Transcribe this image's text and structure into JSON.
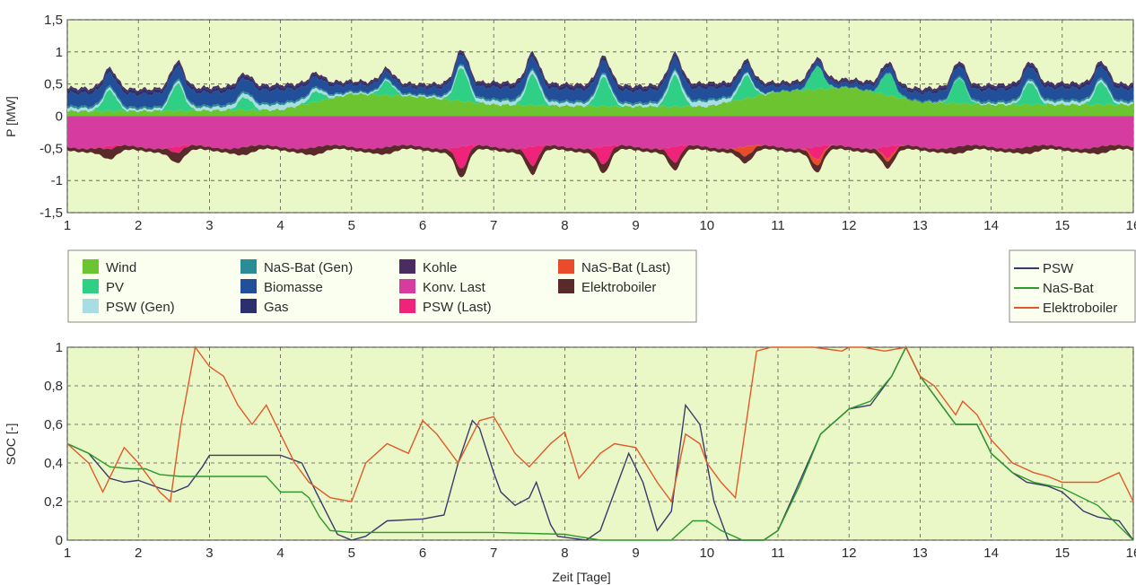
{
  "chart_data": [
    {
      "type": "area",
      "ylabel": "P [MW]",
      "xlim": [
        1,
        16
      ],
      "ylim": [
        -1.5,
        1.5
      ],
      "x_ticks": [
        "1",
        "2",
        "3",
        "4",
        "5",
        "6",
        "7",
        "8",
        "9",
        "10",
        "11",
        "12",
        "13",
        "14",
        "15",
        "16"
      ],
      "y_ticks": [
        "1,5",
        "1",
        "0,5",
        "0",
        "-0,5",
        "-1",
        "-1,5"
      ],
      "grid": true,
      "legend_position": "below",
      "series": [
        {
          "name": "Wind",
          "color": "#6cc530",
          "values": [
            0.08,
            0.08,
            0.09,
            0.1,
            0.35,
            0.3,
            0.18,
            0.16,
            0.15,
            0.15,
            0.38,
            0.45,
            0.22,
            0.18,
            0.18,
            0.18
          ]
        },
        {
          "name": "PV",
          "color": "#2fcf86",
          "values": [
            0.0,
            0.0,
            0.0,
            0.0,
            0.0,
            0.0,
            0.0,
            0.0,
            0.0,
            0.0,
            0.0,
            0.0,
            0.0,
            0.0,
            0.0,
            0.0
          ]
        },
        {
          "name": "PSW (Gen)",
          "color": "#a9dde3",
          "values": [
            0.05,
            0.03,
            0.05,
            0.08,
            0.02,
            0.02,
            0.06,
            0.05,
            0.03,
            0.08,
            0.0,
            0.0,
            0.0,
            0.02,
            0.05,
            0.03
          ]
        },
        {
          "name": "NaS-Bat (Gen)",
          "color": "#2a8c94",
          "values": [
            0.03,
            0.03,
            0.03,
            0.03,
            0.02,
            0.02,
            0.03,
            0.03,
            0.03,
            0.03,
            0.01,
            0.01,
            0.02,
            0.03,
            0.03,
            0.03
          ]
        },
        {
          "name": "Biomasse",
          "color": "#224f9a",
          "values": [
            0.2,
            0.2,
            0.2,
            0.2,
            0.1,
            0.1,
            0.18,
            0.18,
            0.18,
            0.18,
            0.08,
            0.06,
            0.12,
            0.18,
            0.18,
            0.18
          ]
        },
        {
          "name": "Gas",
          "color": "#2b2f6e",
          "values": [
            0.05,
            0.05,
            0.05,
            0.05,
            0.03,
            0.03,
            0.05,
            0.05,
            0.05,
            0.05,
            0.03,
            0.03,
            0.04,
            0.05,
            0.05,
            0.05
          ]
        },
        {
          "name": "Kohle",
          "color": "#4a2c63",
          "values": [
            0.03,
            0.03,
            0.03,
            0.03,
            0.03,
            0.03,
            0.03,
            0.03,
            0.03,
            0.03,
            0.03,
            0.03,
            0.03,
            0.03,
            0.03,
            0.03
          ]
        },
        {
          "name": "Konv. Last",
          "color": "#d63ca0",
          "values": [
            -0.48,
            -0.48,
            -0.48,
            -0.48,
            -0.48,
            -0.48,
            -0.48,
            -0.48,
            -0.48,
            -0.48,
            -0.48,
            -0.48,
            -0.48,
            -0.48,
            -0.48,
            -0.48
          ]
        },
        {
          "name": "PSW (Last)",
          "color": "#f0237a",
          "values": [
            0.0,
            0.0,
            0.0,
            0.0,
            0.0,
            0.0,
            0.0,
            0.0,
            0.0,
            0.0,
            0.0,
            0.0,
            0.0,
            0.0,
            0.0,
            0.0
          ]
        },
        {
          "name": "NaS-Bat (Last)",
          "color": "#ea4b2a",
          "values": [
            0.0,
            0.0,
            0.0,
            0.0,
            0.0,
            0.0,
            0.0,
            0.0,
            0.0,
            0.0,
            0.0,
            0.0,
            0.0,
            0.0,
            0.0,
            0.0
          ]
        },
        {
          "name": "Elektroboiler",
          "color": "#5a2a2a",
          "values": [
            -0.05,
            -0.05,
            -0.05,
            -0.05,
            -0.05,
            -0.05,
            -0.05,
            -0.05,
            -0.05,
            -0.05,
            -0.05,
            -0.05,
            -0.05,
            -0.05,
            -0.05,
            -0.05
          ]
        }
      ],
      "peaks": {
        "pv_peak_days": [
          1.6,
          2.55,
          3.5,
          4.5,
          5.5,
          6.55,
          7.55,
          8.55,
          9.55,
          10.55,
          11.55,
          12.55,
          13.55,
          14.55,
          15.55
        ],
        "pv_peak_values": [
          0.32,
          0.42,
          0.2,
          0.16,
          0.22,
          0.52,
          0.48,
          0.45,
          0.48,
          0.35,
          0.35,
          0.35,
          0.4,
          0.35,
          0.35
        ],
        "psw_last_peak_values": [
          -0.05,
          -0.1,
          0.0,
          0.0,
          0.0,
          -0.35,
          -0.3,
          -0.28,
          -0.25,
          0.0,
          -0.2,
          -0.18,
          0.0,
          0.0,
          0.0
        ],
        "nas_last_peak_values": [
          0.0,
          0.0,
          0.0,
          0.0,
          0.0,
          0.0,
          0.0,
          0.0,
          0.0,
          -0.15,
          -0.1,
          -0.05,
          0.0,
          0.0,
          0.0
        ],
        "boiler_peak_values": [
          -0.18,
          -0.18,
          -0.12,
          -0.12,
          -0.1,
          -0.15,
          -0.15,
          -0.15,
          -0.12,
          -0.1,
          -0.1,
          -0.1,
          -0.1,
          -0.1,
          -0.1
        ]
      }
    },
    {
      "type": "line",
      "xlabel": "Zeit [Tage]",
      "ylabel": "SOC [-]",
      "xlim": [
        1,
        16
      ],
      "ylim": [
        0,
        1
      ],
      "x_ticks": [
        "1",
        "2",
        "3",
        "4",
        "5",
        "6",
        "7",
        "8",
        "9",
        "10",
        "11",
        "12",
        "13",
        "14",
        "15",
        "16"
      ],
      "y_ticks": [
        "1",
        "0,8",
        "0,6",
        "0,4",
        "0,2",
        "0"
      ],
      "grid": true,
      "legend_position": "top-right",
      "series": [
        {
          "name": "PSW",
          "color": "#3a3a6e",
          "x": [
            1,
            1.3,
            1.6,
            1.8,
            2.0,
            2.3,
            2.5,
            2.7,
            2.9,
            3.0,
            3.5,
            3.8,
            4.0,
            4.3,
            4.5,
            4.8,
            5.0,
            5.2,
            5.5,
            6.0,
            6.3,
            6.5,
            6.7,
            6.8,
            7.0,
            7.1,
            7.3,
            7.5,
            7.6,
            7.8,
            7.9,
            8.3,
            8.5,
            8.7,
            8.9,
            9.1,
            9.3,
            9.5,
            9.7,
            9.9,
            10.1,
            10.3,
            10.5,
            10.8,
            11.0,
            11.3,
            11.6,
            12.0,
            12.3,
            12.6,
            12.8,
            13.0,
            13.5,
            13.8,
            14.0,
            14.3,
            14.5,
            14.8,
            15.0,
            15.3,
            15.5,
            15.8,
            16.0
          ],
          "y": [
            0.5,
            0.45,
            0.32,
            0.3,
            0.31,
            0.27,
            0.25,
            0.28,
            0.38,
            0.44,
            0.44,
            0.44,
            0.44,
            0.4,
            0.25,
            0.03,
            0.0,
            0.02,
            0.1,
            0.11,
            0.13,
            0.4,
            0.62,
            0.58,
            0.35,
            0.25,
            0.18,
            0.22,
            0.3,
            0.08,
            0.02,
            0.0,
            0.05,
            0.25,
            0.45,
            0.3,
            0.05,
            0.15,
            0.7,
            0.6,
            0.2,
            0.0,
            0.0,
            0.0,
            0.05,
            0.3,
            0.55,
            0.68,
            0.7,
            0.85,
            1.0,
            0.85,
            0.6,
            0.6,
            0.45,
            0.35,
            0.3,
            0.28,
            0.25,
            0.15,
            0.12,
            0.1,
            0.0
          ]
        },
        {
          "name": "NaS-Bat",
          "color": "#2a9a2a",
          "x": [
            1,
            1.3,
            1.6,
            1.9,
            2.1,
            2.3,
            2.6,
            3.0,
            3.5,
            3.8,
            4.0,
            4.3,
            4.4,
            4.55,
            4.7,
            5.0,
            6.0,
            7.0,
            8.0,
            8.5,
            9.5,
            9.8,
            10.0,
            10.2,
            10.5,
            10.8,
            11.0,
            11.3,
            11.6,
            12.0,
            12.3,
            12.6,
            12.8,
            13.0,
            13.5,
            13.8,
            14.0,
            14.3,
            14.6,
            15.0,
            15.5,
            16.0
          ],
          "y": [
            0.5,
            0.45,
            0.38,
            0.37,
            0.37,
            0.34,
            0.33,
            0.33,
            0.33,
            0.33,
            0.25,
            0.25,
            0.22,
            0.12,
            0.05,
            0.04,
            0.04,
            0.04,
            0.03,
            0.0,
            0.0,
            0.1,
            0.1,
            0.05,
            0.0,
            0.0,
            0.05,
            0.28,
            0.55,
            0.68,
            0.72,
            0.85,
            1.0,
            0.85,
            0.6,
            0.6,
            0.45,
            0.35,
            0.3,
            0.27,
            0.18,
            0.0
          ]
        },
        {
          "name": "Elektroboiler",
          "color": "#e05a2a",
          "x": [
            1,
            1.3,
            1.5,
            1.8,
            2.0,
            2.3,
            2.45,
            2.6,
            2.8,
            3.0,
            3.2,
            3.4,
            3.6,
            3.8,
            4.0,
            4.2,
            4.4,
            4.7,
            5.0,
            5.2,
            5.5,
            5.8,
            6.0,
            6.2,
            6.5,
            6.8,
            7.0,
            7.3,
            7.5,
            7.8,
            8.0,
            8.2,
            8.5,
            8.7,
            9.0,
            9.3,
            9.5,
            9.7,
            9.9,
            10.0,
            10.2,
            10.4,
            10.7,
            10.9,
            11.5,
            11.9,
            12.0,
            12.2,
            12.5,
            12.8,
            13.0,
            13.2,
            13.5,
            13.6,
            13.8,
            14.0,
            14.3,
            14.6,
            14.8,
            15.0,
            15.3,
            15.5,
            15.8,
            16.0
          ],
          "y": [
            0.5,
            0.4,
            0.25,
            0.48,
            0.4,
            0.25,
            0.2,
            0.6,
            1.0,
            0.9,
            0.85,
            0.7,
            0.6,
            0.7,
            0.55,
            0.4,
            0.3,
            0.22,
            0.2,
            0.4,
            0.5,
            0.45,
            0.62,
            0.55,
            0.4,
            0.62,
            0.64,
            0.45,
            0.38,
            0.5,
            0.56,
            0.32,
            0.45,
            0.5,
            0.48,
            0.3,
            0.2,
            0.55,
            0.5,
            0.4,
            0.3,
            0.22,
            0.98,
            1.0,
            1.0,
            0.98,
            1.0,
            1.0,
            0.98,
            1.0,
            0.85,
            0.8,
            0.65,
            0.72,
            0.65,
            0.52,
            0.4,
            0.35,
            0.33,
            0.3,
            0.3,
            0.3,
            0.35,
            0.2
          ]
        }
      ]
    }
  ],
  "legend_main": [
    {
      "label": "Wind",
      "color": "#6cc530"
    },
    {
      "label": "PV",
      "color": "#2fcf86"
    },
    {
      "label": "PSW (Gen)",
      "color": "#a9dde3"
    },
    {
      "label": "NaS-Bat (Gen)",
      "color": "#2a8c94"
    },
    {
      "label": "Biomasse",
      "color": "#224f9a"
    },
    {
      "label": "Gas",
      "color": "#2b2f6e"
    },
    {
      "label": "Kohle",
      "color": "#4a2c63"
    },
    {
      "label": "Konv. Last",
      "color": "#d63ca0"
    },
    {
      "label": "PSW (Last)",
      "color": "#f0237a"
    },
    {
      "label": "NaS-Bat (Last)",
      "color": "#ea4b2a"
    },
    {
      "label": "Elektroboiler",
      "color": "#5a2a2a"
    }
  ],
  "legend_soc": [
    {
      "label": "PSW",
      "color": "#3a3a6e"
    },
    {
      "label": "NaS-Bat",
      "color": "#2a9a2a"
    },
    {
      "label": "Elektroboiler",
      "color": "#e05a2a"
    }
  ],
  "colors": {
    "plot_bg": "#eaf7c6",
    "grid": "#555555",
    "legend_bg": "#fbfff0"
  }
}
